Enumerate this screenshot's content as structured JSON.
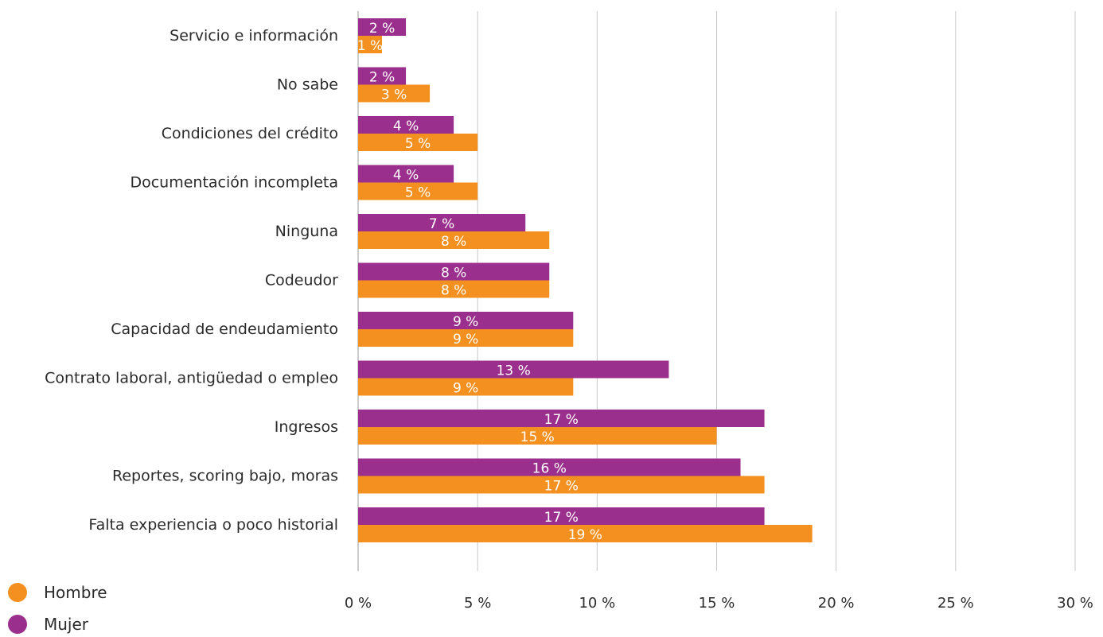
{
  "chart_data": {
    "type": "bar",
    "orientation": "horizontal",
    "categories": [
      "Servicio e información",
      "No sabe",
      "Condiciones del crédito",
      "Documentación incompleta",
      "Ninguna",
      "Codeudor",
      "Capacidad de endeudamiento",
      "Contrato laboral, antigüedad o empleo",
      "Ingresos",
      "Reportes, scoring bajo, moras",
      "Falta experiencia o poco historial"
    ],
    "series": [
      {
        "name": "Mujer",
        "color": "#9b2f8d",
        "values": [
          2,
          2,
          4,
          4,
          7,
          8,
          9,
          13,
          17,
          16,
          17
        ],
        "labels": [
          "2 %",
          "2 %",
          "4 %",
          "4 %",
          "7 %",
          "8 %",
          "9 %",
          "13 %",
          "17 %",
          "16 %",
          "17 %"
        ]
      },
      {
        "name": "Hombre",
        "color": "#f3901f",
        "values": [
          1,
          3,
          5,
          5,
          8,
          8,
          9,
          9,
          15,
          17,
          19
        ],
        "labels": [
          "1 %",
          "3 %",
          "5 %",
          "5 %",
          "8 %",
          "8 %",
          "9 %",
          "9 %",
          "15 %",
          "17 %",
          "19 %"
        ]
      }
    ],
    "xlim": [
      0,
      30
    ],
    "x_ticks": [
      0,
      5,
      10,
      15,
      20,
      25,
      30
    ],
    "x_tick_labels": [
      "0 %",
      "5 %",
      "10 %",
      "15 %",
      "20 %",
      "25 %",
      "30 %"
    ],
    "grid": "vertical",
    "legend": {
      "position": "bottom-left",
      "entries": [
        {
          "label": "Hombre",
          "color": "#f3901f"
        },
        {
          "label": "Mujer",
          "color": "#9b2f8d"
        }
      ]
    }
  }
}
